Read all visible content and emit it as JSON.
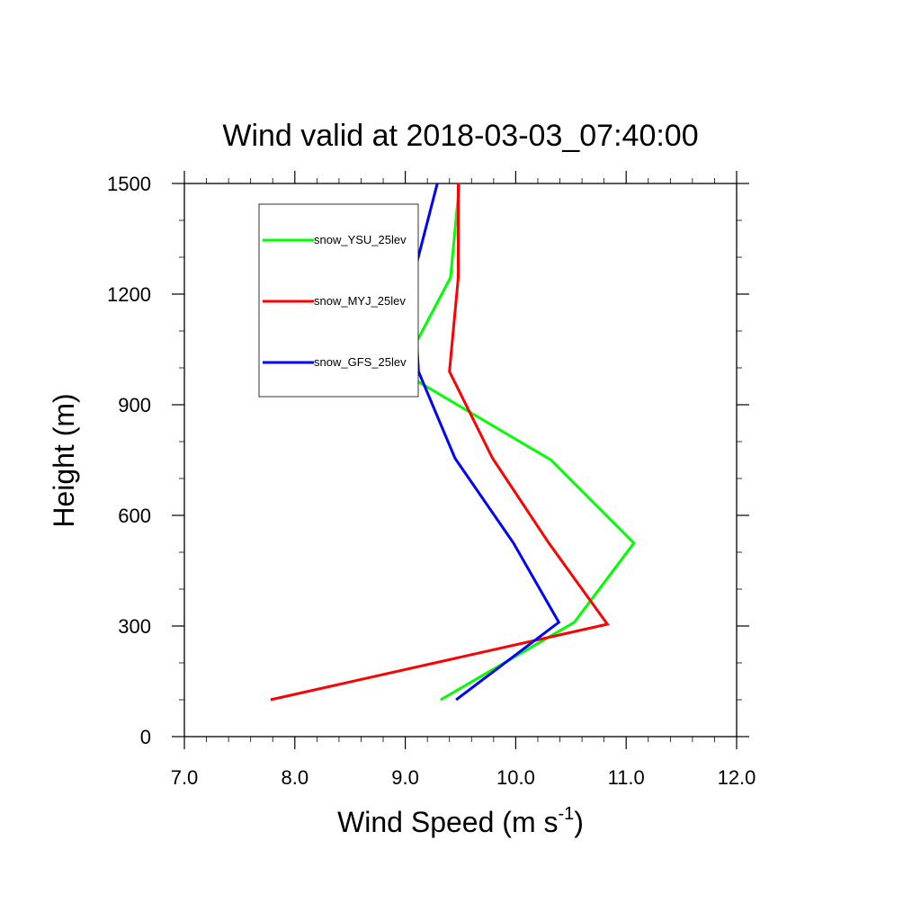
{
  "chart_data": {
    "type": "line",
    "title": "Wind valid at 2018-03-03_07:40:00",
    "xlabel": "Wind Speed (m s",
    "xlabel_superscript": "-1",
    "xlabel_suffix": ")",
    "ylabel": "Height (m)",
    "xlim": [
      7.0,
      12.0
    ],
    "ylim": [
      0,
      1500
    ],
    "x_ticks": [
      7.0,
      8.0,
      9.0,
      10.0,
      11.0,
      12.0
    ],
    "x_tick_labels": [
      "7.0",
      "8.0",
      "9.0",
      "10.0",
      "11.0",
      "12.0"
    ],
    "y_ticks": [
      0,
      300,
      600,
      900,
      1200,
      1500
    ],
    "y_tick_labels": [
      "0",
      "300",
      "600",
      "900",
      "1200",
      "1500"
    ],
    "grid": false,
    "legend_position": "top-left",
    "series": [
      {
        "name": "snow_YSU_25lev",
        "color": "#00ff00",
        "points": [
          [
            9.32,
            100
          ],
          [
            10.53,
            310
          ],
          [
            11.07,
            525
          ],
          [
            10.32,
            750
          ],
          [
            8.96,
            990
          ],
          [
            9.41,
            1245
          ],
          [
            9.49,
            1500
          ]
        ]
      },
      {
        "name": "snow_MYJ_25lev",
        "color": "#ff0000",
        "points": [
          [
            7.78,
            100
          ],
          [
            10.83,
            305
          ],
          [
            10.3,
            525
          ],
          [
            9.79,
            755
          ],
          [
            9.4,
            990
          ],
          [
            9.48,
            1245
          ],
          [
            9.48,
            1500
          ]
        ]
      },
      {
        "name": "snow_GFS_25lev",
        "color": "#0000ff",
        "points": [
          [
            9.46,
            100
          ],
          [
            10.39,
            310
          ],
          [
            9.98,
            525
          ],
          [
            9.45,
            755
          ],
          [
            9.12,
            990
          ],
          [
            9.07,
            1245
          ],
          [
            9.29,
            1500
          ]
        ]
      }
    ]
  }
}
